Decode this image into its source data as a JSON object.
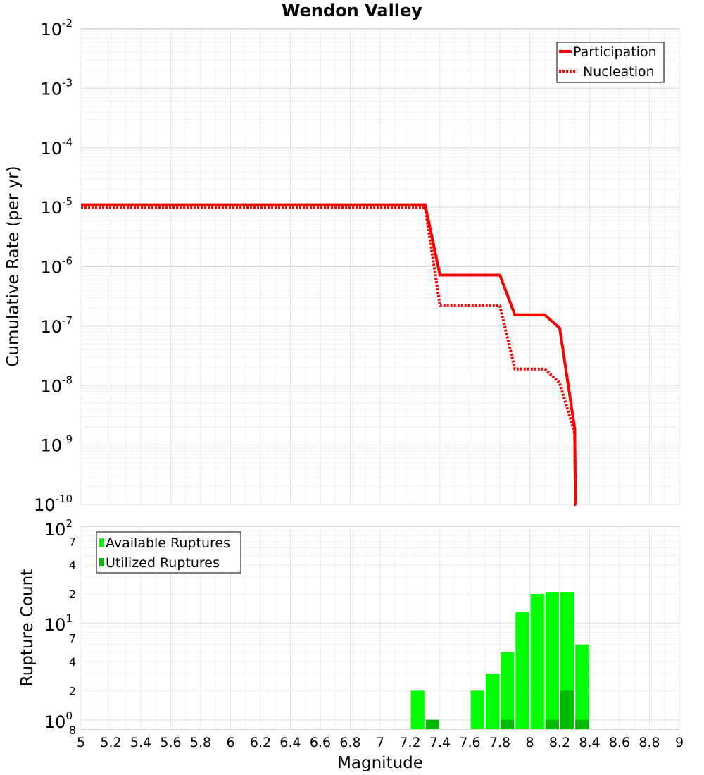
{
  "title": "Wendon Valley",
  "chart_data": [
    {
      "type": "line",
      "title": "Wendon Valley",
      "xlabel": "",
      "ylabel": "Cumulative Rate (per yr)",
      "xlim": [
        5,
        9
      ],
      "ylim": [
        1e-10,
        0.01
      ],
      "yscale": "log",
      "grid": true,
      "legend_position": "top-right",
      "series": [
        {
          "name": "Participation",
          "style": "solid",
          "color": "#ff0000",
          "x": [
            5.0,
            5.1,
            5.2,
            5.3,
            5.4,
            5.5,
            5.6,
            5.7,
            5.8,
            5.9,
            6.0,
            6.1,
            6.2,
            6.3,
            6.4,
            6.5,
            6.6,
            6.7,
            6.8,
            6.9,
            7.0,
            7.1,
            7.2,
            7.3,
            7.4,
            7.5,
            7.6,
            7.7,
            7.8,
            7.9,
            8.0,
            8.1,
            8.2,
            8.3,
            8.305,
            8.31
          ],
          "y": [
            1.1e-05,
            1.1e-05,
            1.1e-05,
            1.1e-05,
            1.1e-05,
            1.1e-05,
            1.1e-05,
            1.1e-05,
            1.1e-05,
            1.1e-05,
            1.1e-05,
            1.1e-05,
            1.1e-05,
            1.1e-05,
            1.1e-05,
            1.1e-05,
            1.1e-05,
            1.1e-05,
            1.1e-05,
            1.1e-05,
            1.1e-05,
            1.1e-05,
            1.1e-05,
            1.1e-05,
            7.2e-07,
            7.2e-07,
            7.2e-07,
            7.2e-07,
            7.2e-07,
            1.55e-07,
            1.55e-07,
            1.55e-07,
            9.2e-08,
            1.9e-09,
            1e-10,
            1e-10
          ]
        },
        {
          "name": "Nucleation",
          "style": "dotted",
          "color": "#ff0000",
          "x": [
            5.0,
            5.1,
            5.2,
            5.3,
            5.4,
            5.5,
            5.6,
            5.7,
            5.8,
            5.9,
            6.0,
            6.1,
            6.2,
            6.3,
            6.4,
            6.5,
            6.6,
            6.7,
            6.8,
            6.9,
            7.0,
            7.1,
            7.2,
            7.3,
            7.4,
            7.5,
            7.6,
            7.7,
            7.8,
            7.9,
            8.0,
            8.1,
            8.2,
            8.3,
            8.305,
            8.31
          ],
          "y": [
            1e-05,
            1e-05,
            1e-05,
            1e-05,
            1e-05,
            1e-05,
            1e-05,
            1e-05,
            1e-05,
            1e-05,
            1e-05,
            1e-05,
            1e-05,
            1e-05,
            1e-05,
            1e-05,
            1e-05,
            1e-05,
            1e-05,
            1e-05,
            1e-05,
            1e-05,
            1e-05,
            1e-05,
            2.2e-07,
            2.2e-07,
            2.2e-07,
            2.2e-07,
            2.2e-07,
            1.9e-08,
            1.9e-08,
            1.9e-08,
            1.1e-08,
            1.6e-09,
            1e-10,
            1e-10
          ]
        }
      ]
    },
    {
      "type": "bar",
      "xlabel": "Magnitude",
      "ylabel": "Rupture Count",
      "xlim": [
        5,
        9
      ],
      "ylim": [
        0.8,
        100
      ],
      "yscale": "log",
      "grid": true,
      "legend_position": "top-left",
      "bar_width": 0.1,
      "categories": [
        7.25,
        7.35,
        7.45,
        7.55,
        7.65,
        7.75,
        7.85,
        7.95,
        8.05,
        8.15,
        8.25,
        8.35
      ],
      "series": [
        {
          "name": "Available Ruptures",
          "color": "#00ff00",
          "values": [
            2,
            0,
            0,
            0,
            2,
            3,
            5,
            13,
            20,
            21,
            21,
            6
          ]
        },
        {
          "name": "Utilized Ruptures",
          "color": "#00bb00",
          "values": [
            0,
            1,
            0,
            0,
            0,
            0,
            1,
            0,
            0,
            1,
            2,
            1
          ]
        }
      ]
    }
  ],
  "axes": {
    "x_ticks": [
      "5",
      "5.2",
      "5.4",
      "5.6",
      "5.8",
      "6",
      "6.2",
      "6.4",
      "6.6",
      "6.8",
      "7",
      "7.2",
      "7.4",
      "7.6",
      "7.8",
      "8",
      "8.2",
      "8.4",
      "8.6",
      "8.8",
      "9"
    ],
    "top_y_ticks": [
      {
        "base": "10",
        "exp": "-2"
      },
      {
        "base": "10",
        "exp": "-3"
      },
      {
        "base": "10",
        "exp": "-4"
      },
      {
        "base": "10",
        "exp": "-5"
      },
      {
        "base": "10",
        "exp": "-6"
      },
      {
        "base": "10",
        "exp": "-7"
      },
      {
        "base": "10",
        "exp": "-8"
      },
      {
        "base": "10",
        "exp": "-9"
      },
      {
        "base": "10",
        "exp": "-10"
      }
    ],
    "bottom_y_major": [
      {
        "base": "10",
        "exp": "2"
      },
      {
        "base": "10",
        "exp": "1"
      },
      {
        "base": "10",
        "exp": "0"
      }
    ],
    "bottom_y_minor": [
      "7",
      "4",
      "2",
      "7",
      "4",
      "2",
      "8"
    ]
  }
}
